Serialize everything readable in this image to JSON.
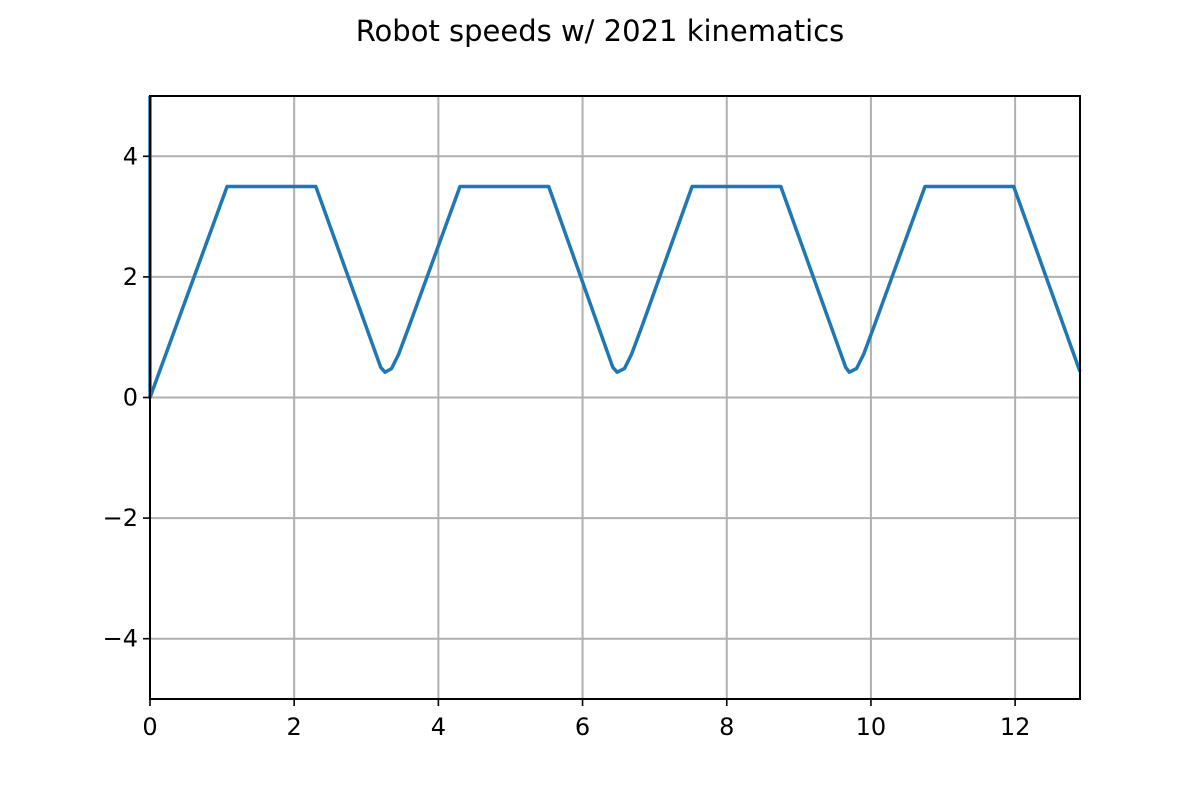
{
  "chart_data": {
    "type": "line",
    "title": "Robot speeds w/ 2021 kinematics",
    "xlabel": "",
    "ylabel": "",
    "xlim": [
      0,
      12.9
    ],
    "ylim": [
      -5,
      5
    ],
    "x_ticks": [
      0,
      2,
      4,
      6,
      8,
      10,
      12
    ],
    "y_ticks": [
      -4,
      -2,
      0,
      2,
      4
    ],
    "x_tick_labels": [
      "0",
      "2",
      "4",
      "6",
      "8",
      "10",
      "12"
    ],
    "y_tick_labels": [
      "−4",
      "−2",
      "0",
      "2",
      "4"
    ],
    "grid": true,
    "legend": "none",
    "series": [
      {
        "color": "#1f77b4",
        "x": [
          0,
          0,
          0,
          1.07,
          2.3,
          3.2,
          3.26,
          3.35,
          3.45,
          3.6,
          4.3,
          5.53,
          6.42,
          6.48,
          6.58,
          6.68,
          6.83,
          7.52,
          8.75,
          9.65,
          9.7,
          9.8,
          9.9,
          10.05,
          10.75,
          11.98,
          12.9
        ],
        "y": [
          5,
          0,
          0,
          3.5,
          3.5,
          0.5,
          0.42,
          0.48,
          0.72,
          1.2,
          3.5,
          3.5,
          0.5,
          0.42,
          0.48,
          0.72,
          1.2,
          3.5,
          3.5,
          0.5,
          0.42,
          0.48,
          0.72,
          1.2,
          3.5,
          3.5,
          0.43
        ]
      }
    ]
  }
}
